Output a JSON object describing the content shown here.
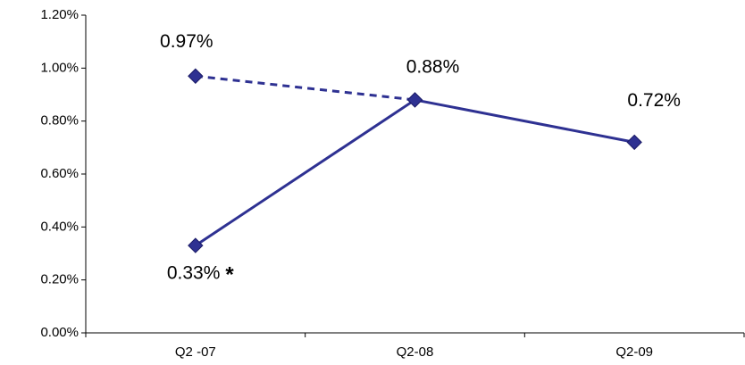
{
  "chart_data": {
    "type": "line",
    "categories": [
      "Q2 -07",
      "Q2-08",
      "Q2-09"
    ],
    "series": [
      {
        "color": "#2e3192",
        "dash": false,
        "values": [
          0.33,
          0.88,
          0.72
        ],
        "value_labels": [
          "0.33%",
          "0.88%",
          "0.72%"
        ]
      },
      {
        "color": "#2e3192",
        "dash": true,
        "values": [
          0.97,
          0.88,
          null
        ],
        "value_labels": [
          "0.97%",
          null,
          null
        ]
      }
    ],
    "annotation": "*",
    "ylim": [
      0,
      1.2
    ],
    "yticks": [
      {
        "value": 0,
        "label": "0.00%"
      },
      {
        "value": 0.2,
        "label": "0.20%"
      },
      {
        "value": 0.4,
        "label": "0.40%"
      },
      {
        "value": 0.6,
        "label": "0.60%"
      },
      {
        "value": 0.8,
        "label": "0.80%"
      },
      {
        "value": 1.0,
        "label": "1.00%"
      },
      {
        "value": 1.2,
        "label": "1.20%"
      }
    ],
    "grid": false
  }
}
